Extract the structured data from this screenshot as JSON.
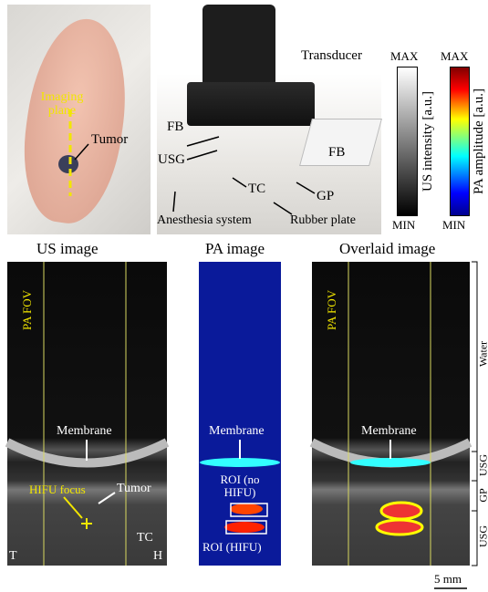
{
  "mouse_photo": {
    "imaging_plane": "Imaging plane",
    "tumor": "Tumor"
  },
  "setup_photo": {
    "transducer": "Transducer",
    "fb_left": "FB",
    "fb_right": "FB",
    "usg": "USG",
    "tc": "TC",
    "gp": "GP",
    "anesthesia": "Anesthesia system",
    "rubber_plate": "Rubber plate"
  },
  "colorbars": [
    {
      "max": "MAX",
      "min": "MIN",
      "label": "US intensity [a.u.]"
    },
    {
      "max": "MAX",
      "min": "MIN",
      "label": "PA amplitude [a.u.]"
    }
  ],
  "panels": [
    {
      "title": "US image",
      "fov": "PA FOV",
      "membrane": "Membrane",
      "hifu_focus": "HIFU focus",
      "tumor": "Tumor",
      "tc": "TC",
      "tail": "T",
      "head": "H"
    },
    {
      "title": "PA image",
      "membrane": "Membrane",
      "roi_no_hifu": "ROI (no HIFU)",
      "roi_hifu": "ROI (HIFU)"
    },
    {
      "title": "Overlaid image",
      "fov": "PA FOV",
      "membrane": "Membrane"
    }
  ],
  "depth_layers": [
    "Water",
    "USG",
    "GP",
    "USG"
  ],
  "scale_bar": "5 mm"
}
